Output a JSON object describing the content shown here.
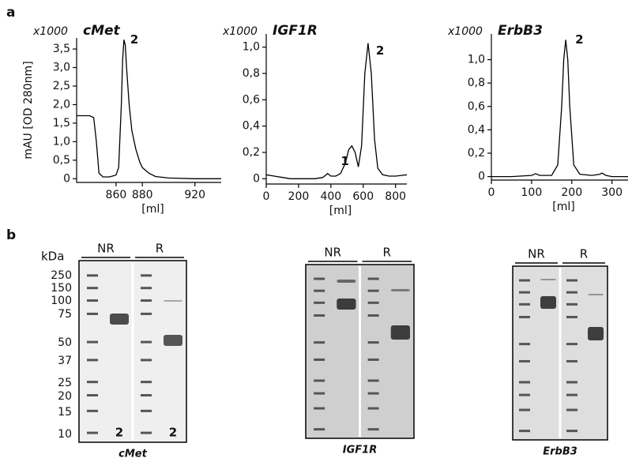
{
  "panel_labels": [
    "a",
    "b"
  ],
  "chart_data": [
    {
      "type": "line",
      "multiplier": "x1000",
      "title": "cMet",
      "ylabel": "mAU [OD 280nm]",
      "xlabel": "[ml]",
      "x": [
        830,
        835,
        840,
        843,
        845,
        847,
        850,
        855,
        858,
        860,
        862,
        864,
        865,
        866,
        867,
        868,
        870,
        872,
        875,
        878,
        880,
        885,
        890,
        900,
        920,
        940
      ],
      "values": [
        1.7,
        1.7,
        1.7,
        1.65,
        1.0,
        0.15,
        0.05,
        0.05,
        0.08,
        0.1,
        0.3,
        2.0,
        3.2,
        3.75,
        3.6,
        3.0,
        2.0,
        1.3,
        0.8,
        0.45,
        0.3,
        0.15,
        0.06,
        0.02,
        0.0,
        0.0
      ],
      "color": "#000000",
      "xlim": [
        830,
        940
      ],
      "xticks": [
        860,
        880,
        920
      ],
      "ylim": [
        -0.1,
        3.8
      ],
      "yticks": [
        0,
        {
          "value": 0.5,
          "label": "0,5"
        },
        {
          "value": 1.0,
          "label": "1,0"
        },
        {
          "value": 1.5,
          "label": "1,5"
        },
        {
          "value": 2.0,
          "label": "2,0"
        },
        {
          "value": 2.5,
          "label": "2,5"
        },
        {
          "value": 3.0,
          "label": "3,0"
        },
        {
          "value": 3.5,
          "label": "3,5"
        }
      ],
      "annotations": [
        "2"
      ]
    },
    {
      "type": "line",
      "multiplier": "x1000",
      "title": "IGF1R",
      "xlabel": "[ml]",
      "x": [
        0,
        50,
        100,
        150,
        200,
        250,
        300,
        350,
        380,
        400,
        430,
        460,
        490,
        510,
        530,
        550,
        570,
        590,
        610,
        630,
        650,
        670,
        690,
        720,
        760,
        800,
        870
      ],
      "values": [
        0.03,
        0.02,
        0.01,
        0.0,
        0.0,
        0.0,
        0.0,
        0.01,
        0.04,
        0.02,
        0.02,
        0.04,
        0.12,
        0.22,
        0.25,
        0.2,
        0.09,
        0.25,
        0.8,
        1.03,
        0.8,
        0.3,
        0.08,
        0.03,
        0.02,
        0.02,
        0.03
      ],
      "color": "#000000",
      "xlim": [
        0,
        870
      ],
      "xticks": [
        0,
        200,
        400,
        600,
        800
      ],
      "ylim": [
        -0.04,
        1.1
      ],
      "yticks": [
        0,
        {
          "value": 0.2,
          "label": "0,2"
        },
        {
          "value": 0.4,
          "label": "0,4"
        },
        {
          "value": 0.6,
          "label": "0,6"
        },
        {
          "value": 0.8,
          "label": "0,8"
        },
        {
          "value": 1.0,
          "label": "1,0"
        }
      ],
      "annotations": [
        "1",
        "2"
      ]
    },
    {
      "type": "line",
      "multiplier": "x1000",
      "title": "ErbB3",
      "xlabel": "[ml]",
      "x": [
        0,
        50,
        100,
        110,
        120,
        150,
        165,
        175,
        180,
        185,
        190,
        195,
        205,
        220,
        250,
        270,
        275,
        285,
        300,
        340
      ],
      "values": [
        0,
        0,
        0.01,
        0.025,
        0.01,
        0.01,
        0.1,
        0.6,
        1.0,
        1.17,
        1.0,
        0.6,
        0.1,
        0.02,
        0.01,
        0.02,
        0.03,
        0.01,
        0.0,
        0.0
      ],
      "color": "#000000",
      "xlim": [
        0,
        340
      ],
      "xticks": [
        0,
        100,
        200,
        300
      ],
      "ylim": [
        -0.03,
        1.22
      ],
      "yticks": [
        0,
        {
          "value": 0.2,
          "label": "0,2"
        },
        {
          "value": 0.4,
          "label": "0,4"
        },
        {
          "value": 0.6,
          "label": "0,6"
        },
        {
          "value": 0.8,
          "label": "0,8"
        },
        {
          "value": 1.0,
          "label": "1,0"
        }
      ],
      "annotations": [
        "2"
      ]
    }
  ],
  "gels": {
    "unit": "kDa",
    "markers": [
      250,
      150,
      100,
      75,
      50,
      37,
      25,
      20,
      15,
      10
    ],
    "items": [
      {
        "caption": "cMet",
        "headers": [
          "NR",
          "R"
        ],
        "lane_labels": [
          "2",
          "2"
        ]
      },
      {
        "caption": "IGF1R",
        "headers": [
          "NR",
          "R"
        ]
      },
      {
        "caption": "ErbB3",
        "headers": [
          "NR",
          "R"
        ]
      }
    ]
  }
}
